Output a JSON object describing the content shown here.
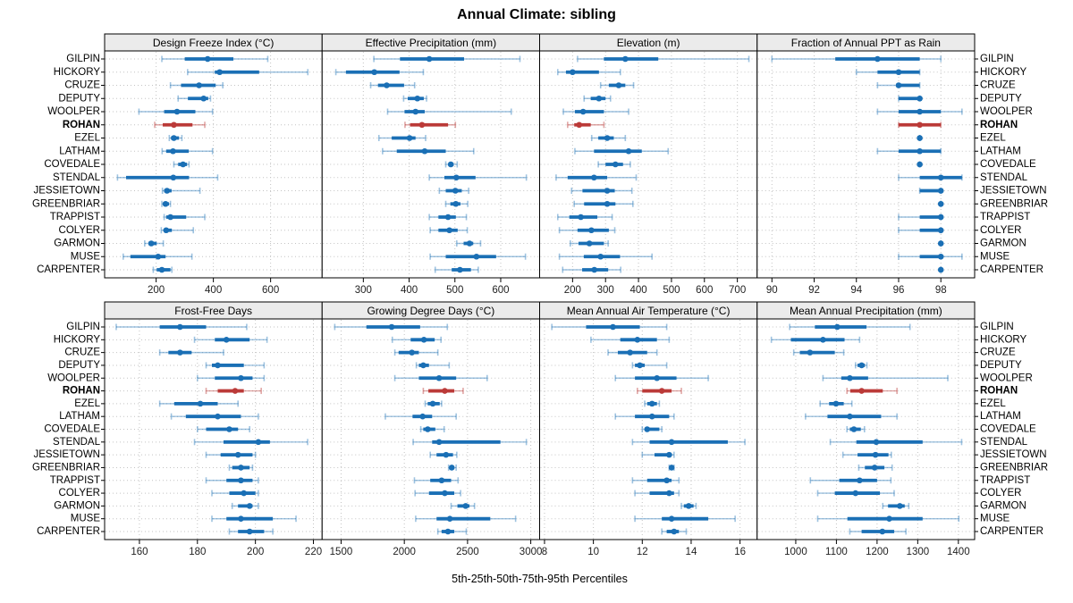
{
  "title": "Annual Climate: sibling",
  "caption": "5th-25th-50th-75th-95th Percentiles",
  "stations": [
    "GILPIN",
    "HICKORY",
    "CRUZE",
    "DEPUTY",
    "WOOLPER",
    "ROHAN",
    "EZEL",
    "LATHAM",
    "COVEDALE",
    "STENDAL",
    "JESSIETOWN",
    "GREENBRIAR",
    "TRAPPIST",
    "COLYER",
    "GARMON",
    "MUSE",
    "CARPENTER"
  ],
  "highlight_station": "ROHAN",
  "colors": {
    "series": "#1a6fb5",
    "series_faint": "rgba(26,111,181,0.42)",
    "highlight": "#bb3a38",
    "highlight_faint": "rgba(187,58,56,0.45)",
    "grid": "#c3c3c3",
    "strip_bg": "#ebebeb",
    "border": "#000000",
    "tick_label": "#222222"
  },
  "chart_data": {
    "type": "scatter",
    "variant": "percentile-interval-dotplot",
    "percentiles": [
      5,
      25,
      50,
      75,
      95
    ],
    "legend_note": "each row: thin line 5th-95th, thick line 25th-75th, dot median",
    "panels": [
      {
        "title": "Design Freeze Index (°C)",
        "grid_row": 0,
        "grid_col": 0,
        "xlim": [
          20,
          780
        ],
        "ticks": [
          200,
          400,
          600
        ],
        "values": [
          [
            220,
            300,
            380,
            470,
            590
          ],
          [
            310,
            405,
            422,
            560,
            730
          ],
          [
            250,
            287,
            350,
            408,
            433
          ],
          [
            277,
            311,
            366,
            382,
            390
          ],
          [
            140,
            228,
            273,
            337,
            397
          ],
          [
            195,
            223,
            262,
            327,
            370
          ],
          [
            246,
            252,
            262,
            280,
            290
          ],
          [
            221,
            235,
            259,
            314,
            397
          ],
          [
            262,
            277,
            294,
            308,
            315
          ],
          [
            65,
            95,
            260,
            315,
            415
          ],
          [
            222,
            228,
            238,
            254,
            353
          ],
          [
            220,
            224,
            233,
            245,
            250
          ],
          [
            228,
            235,
            250,
            305,
            370
          ],
          [
            218,
            228,
            235,
            255,
            330
          ],
          [
            160,
            173,
            183,
            202,
            225
          ],
          [
            85,
            110,
            207,
            233,
            325
          ],
          [
            190,
            202,
            220,
            250,
            255
          ]
        ]
      },
      {
        "title": "Effective Precipitation (mm)",
        "grid_row": 0,
        "grid_col": 1,
        "xlim": [
          210,
          685
        ],
        "ticks": [
          300,
          400,
          500,
          600
        ],
        "values": [
          [
            323,
            380,
            444,
            520,
            642
          ],
          [
            240,
            262,
            324,
            379,
            431
          ],
          [
            316,
            332,
            351,
            389,
            412
          ],
          [
            388,
            397,
            418,
            432,
            438
          ],
          [
            353,
            390,
            414,
            434,
            623
          ],
          [
            391,
            402,
            428,
            485,
            501
          ],
          [
            334,
            362,
            401,
            414,
            436
          ],
          [
            342,
            373,
            434,
            480,
            541
          ],
          [
            480,
            486,
            491,
            497,
            505
          ],
          [
            444,
            477,
            503,
            545,
            656
          ],
          [
            466,
            480,
            501,
            515,
            530
          ],
          [
            480,
            490,
            502,
            512,
            528
          ],
          [
            444,
            464,
            485,
            502,
            525
          ],
          [
            446,
            464,
            488,
            506,
            527
          ],
          [
            504,
            519,
            532,
            540,
            556
          ],
          [
            446,
            480,
            547,
            590,
            654
          ],
          [
            457,
            493,
            511,
            535,
            551
          ]
        ]
      },
      {
        "title": "Elevation (m)",
        "grid_row": 0,
        "grid_col": 2,
        "xlim": [
          100,
          760
        ],
        "ticks": [
          200,
          300,
          400,
          500,
          600,
          700
        ],
        "values": [
          [
            215,
            295,
            360,
            460,
            735
          ],
          [
            155,
            180,
            200,
            280,
            345
          ],
          [
            285,
            310,
            340,
            360,
            385
          ],
          [
            235,
            255,
            280,
            300,
            315
          ],
          [
            172,
            207,
            232,
            295,
            370
          ],
          [
            185,
            205,
            220,
            255,
            295
          ],
          [
            258,
            278,
            305,
            325,
            360
          ],
          [
            207,
            265,
            370,
            410,
            490
          ],
          [
            278,
            300,
            330,
            353,
            375
          ],
          [
            150,
            185,
            265,
            305,
            393
          ],
          [
            197,
            230,
            305,
            328,
            380
          ],
          [
            205,
            235,
            305,
            330,
            383
          ],
          [
            155,
            190,
            225,
            275,
            320
          ],
          [
            160,
            215,
            257,
            310,
            328
          ],
          [
            193,
            218,
            251,
            295,
            308
          ],
          [
            160,
            234,
            285,
            344,
            441
          ],
          [
            170,
            229,
            266,
            308,
            346
          ]
        ]
      },
      {
        "title": "Fraction of Annual PPT as Rain",
        "grid_row": 0,
        "grid_col": 3,
        "xlim": [
          89.3,
          99.6
        ],
        "ticks": [
          90,
          92,
          94,
          96,
          98
        ],
        "values": [
          [
            90,
            93,
            95,
            97,
            98
          ],
          [
            94,
            95,
            96,
            97,
            97
          ],
          [
            95,
            96,
            96,
            97,
            97
          ],
          [
            96,
            96,
            97,
            97,
            97
          ],
          [
            95,
            96,
            97,
            98,
            99
          ],
          [
            96,
            96,
            97,
            98,
            98
          ],
          [
            97,
            97,
            97,
            97,
            97
          ],
          [
            95,
            96,
            97,
            98,
            98
          ],
          [
            97,
            97,
            97,
            97,
            97
          ],
          [
            96,
            97,
            98,
            99,
            99
          ],
          [
            97,
            97,
            98,
            98,
            98
          ],
          [
            98,
            98,
            98,
            98,
            98
          ],
          [
            96,
            97,
            98,
            98,
            98
          ],
          [
            96,
            97,
            98,
            98,
            98
          ],
          [
            98,
            98,
            98,
            98,
            98
          ],
          [
            96,
            97,
            98,
            98,
            99
          ],
          [
            98,
            98,
            98,
            98,
            98
          ]
        ]
      },
      {
        "title": "Frost-Free Days",
        "grid_row": 1,
        "grid_col": 0,
        "xlim": [
          148,
          223
        ],
        "ticks": [
          160,
          180,
          200,
          220
        ],
        "values": [
          [
            152,
            167,
            174,
            183,
            197
          ],
          [
            179,
            186,
            190,
            198,
            204
          ],
          [
            167,
            170,
            174,
            178,
            189
          ],
          [
            183,
            185,
            187,
            196,
            203
          ],
          [
            180,
            186,
            195,
            199,
            203
          ],
          [
            183,
            187,
            193,
            196,
            202
          ],
          [
            167,
            172,
            181,
            187,
            194
          ],
          [
            171,
            176,
            187,
            195,
            201
          ],
          [
            180,
            183,
            191,
            194,
            198
          ],
          [
            179,
            189,
            201,
            205,
            218
          ],
          [
            183,
            188,
            194,
            199,
            200
          ],
          [
            191,
            192,
            195,
            198,
            199
          ],
          [
            183,
            190,
            195,
            199,
            201
          ],
          [
            185,
            191,
            196,
            200,
            201
          ],
          [
            192,
            194,
            198,
            199,
            201
          ],
          [
            185,
            190,
            195,
            206,
            214
          ],
          [
            191,
            194,
            198,
            203,
            206
          ]
        ]
      },
      {
        "title": "Growing Degree Days (°C)",
        "grid_row": 1,
        "grid_col": 1,
        "xlim": [
          1350,
          3070
        ],
        "ticks": [
          1500,
          2000,
          2500,
          3000
        ],
        "values": [
          [
            1450,
            1700,
            1900,
            2125,
            2340
          ],
          [
            1905,
            2050,
            2155,
            2240,
            2290
          ],
          [
            1925,
            1955,
            2060,
            2115,
            2265
          ],
          [
            2095,
            2115,
            2150,
            2195,
            2355
          ],
          [
            1925,
            2115,
            2275,
            2410,
            2655
          ],
          [
            2150,
            2190,
            2320,
            2395,
            2465
          ],
          [
            2165,
            2185,
            2225,
            2280,
            2295
          ],
          [
            1850,
            2065,
            2145,
            2220,
            2410
          ],
          [
            2130,
            2150,
            2185,
            2245,
            2315
          ],
          [
            2070,
            2220,
            2275,
            2760,
            2965
          ],
          [
            2205,
            2255,
            2330,
            2385,
            2415
          ],
          [
            2350,
            2360,
            2375,
            2395,
            2410
          ],
          [
            2080,
            2205,
            2295,
            2370,
            2425
          ],
          [
            2085,
            2195,
            2320,
            2395,
            2445
          ],
          [
            2370,
            2420,
            2485,
            2515,
            2555
          ],
          [
            2090,
            2255,
            2360,
            2680,
            2880
          ],
          [
            2265,
            2295,
            2345,
            2395,
            2490
          ]
        ]
      },
      {
        "title": "Mean Annual Air Temperature (°C)",
        "grid_row": 1,
        "grid_col": 2,
        "xlim": [
          7.8,
          16.7
        ],
        "ticks": [
          8,
          10,
          12,
          14,
          16
        ],
        "values": [
          [
            8.3,
            9.7,
            10.8,
            11.9,
            13.0
          ],
          [
            9.9,
            11.1,
            11.8,
            12.6,
            13.1
          ],
          [
            10.6,
            11.0,
            11.5,
            12.2,
            12.6
          ],
          [
            11.6,
            11.7,
            11.9,
            12.1,
            13.0
          ],
          [
            10.9,
            11.7,
            12.6,
            13.4,
            14.7
          ],
          [
            11.8,
            12.0,
            12.8,
            13.2,
            13.6
          ],
          [
            12.1,
            12.2,
            12.4,
            12.6,
            12.7
          ],
          [
            10.9,
            11.7,
            12.4,
            13.1,
            13.3
          ],
          [
            12.0,
            12.1,
            12.2,
            12.7,
            12.8
          ],
          [
            11.6,
            12.3,
            13.2,
            15.5,
            16.2
          ],
          [
            12.0,
            12.5,
            13.1,
            13.2,
            13.3
          ],
          [
            13.1,
            13.2,
            13.2,
            13.3,
            13.3
          ],
          [
            11.6,
            12.2,
            13.0,
            13.2,
            13.5
          ],
          [
            11.7,
            12.3,
            13.1,
            13.3,
            13.5
          ],
          [
            13.6,
            13.7,
            13.9,
            14.1,
            14.2
          ],
          [
            11.7,
            12.8,
            13.2,
            14.7,
            15.8
          ],
          [
            12.8,
            13.0,
            13.3,
            13.5,
            13.8
          ]
        ]
      },
      {
        "title": "Mean Annual Precipitation (mm)",
        "grid_row": 1,
        "grid_col": 3,
        "xlim": [
          905,
          1440
        ],
        "ticks": [
          1000,
          1100,
          1200,
          1300,
          1400
        ],
        "values": [
          [
            985,
            1047,
            1102,
            1174,
            1281
          ],
          [
            940,
            988,
            1067,
            1120,
            1157
          ],
          [
            995,
            1010,
            1035,
            1096,
            1118
          ],
          [
            1147,
            1152,
            1162,
            1170,
            1175
          ],
          [
            1067,
            1112,
            1133,
            1178,
            1374
          ],
          [
            1126,
            1134,
            1162,
            1214,
            1249
          ],
          [
            1060,
            1082,
            1099,
            1118,
            1138
          ],
          [
            1024,
            1078,
            1133,
            1210,
            1249
          ],
          [
            1126,
            1133,
            1143,
            1160,
            1169
          ],
          [
            1085,
            1149,
            1198,
            1312,
            1408
          ],
          [
            1116,
            1152,
            1196,
            1228,
            1235
          ],
          [
            1155,
            1170,
            1194,
            1218,
            1237
          ],
          [
            1036,
            1107,
            1157,
            1200,
            1234
          ],
          [
            1054,
            1096,
            1147,
            1207,
            1242
          ],
          [
            1214,
            1227,
            1256,
            1268,
            1278
          ],
          [
            1054,
            1127,
            1230,
            1312,
            1401
          ],
          [
            1133,
            1162,
            1213,
            1242,
            1271
          ]
        ]
      }
    ]
  }
}
